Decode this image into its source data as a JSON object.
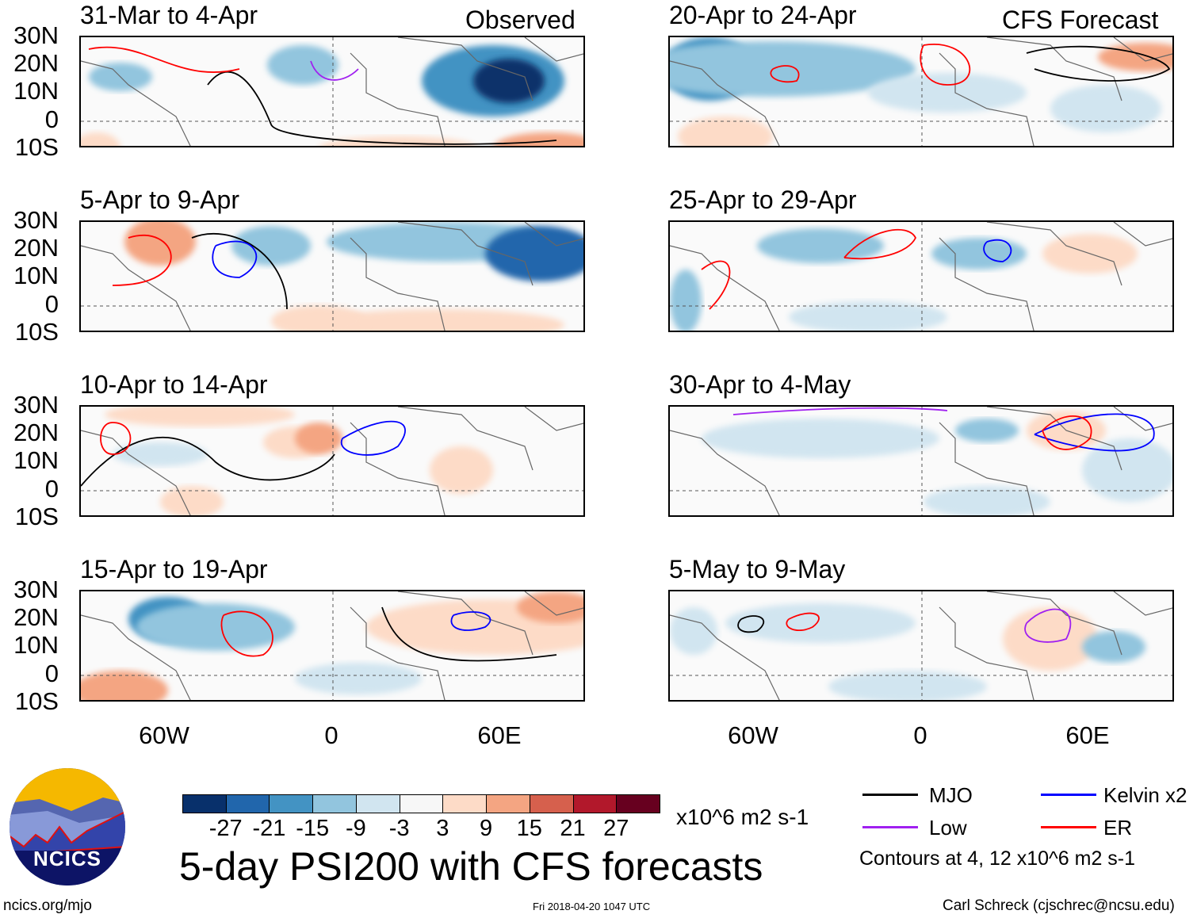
{
  "figure": {
    "title": "5-day PSI200 with CFS forecasts",
    "units": "x10^6 m2 s-1",
    "observed_label": "Observed",
    "forecast_label": "CFS Forecast",
    "lat_labels": [
      "30N",
      "20N",
      "10N",
      "0",
      "10S"
    ],
    "lon_labels": [
      "60W",
      "0",
      "60E"
    ],
    "panels_left": [
      {
        "title": "31-Mar to 4-Apr"
      },
      {
        "title": "5-Apr to 9-Apr"
      },
      {
        "title": "10-Apr to 14-Apr"
      },
      {
        "title": "15-Apr to 19-Apr"
      }
    ],
    "panels_right": [
      {
        "title": "20-Apr to 24-Apr"
      },
      {
        "title": "25-Apr to 29-Apr"
      },
      {
        "title": "30-Apr to 4-May"
      },
      {
        "title": "5-May to 9-May"
      }
    ]
  },
  "colorbar": {
    "labels": [
      "-27",
      "-21",
      "-15",
      "-9",
      "-3",
      "3",
      "9",
      "15",
      "21",
      "27"
    ],
    "colors": [
      "#08306b",
      "#2166ac",
      "#4393c3",
      "#92c5de",
      "#d1e5f0",
      "#f7f7f7",
      "#fddbc7",
      "#f4a582",
      "#d6604d",
      "#b2182b",
      "#67001f"
    ]
  },
  "legend": {
    "items": [
      {
        "label": "MJO",
        "color": "#000000"
      },
      {
        "label": "Kelvin x2",
        "color": "#0000ff"
      },
      {
        "label": "Low",
        "color": "#a020f0"
      },
      {
        "label": "ER",
        "color": "#ff0000"
      }
    ],
    "contours_note": "Contours at 4, 12 x10^6 m2 s-1"
  },
  "footer": {
    "logo_text": "NCICS",
    "url": "ncics.org/mjo",
    "timestamp": "Fri 2018-04-20 1047 UTC",
    "author": "Carl Schreck (cjschrec@ncsu.edu)"
  }
}
